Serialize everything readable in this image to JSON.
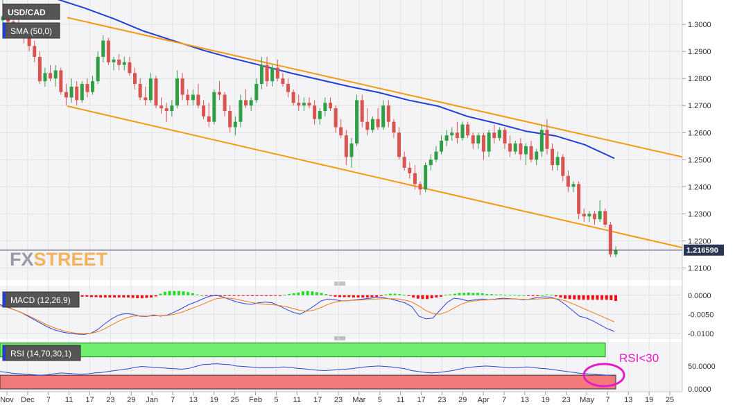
{
  "chart_data": {
    "type": "candlestick",
    "symbol": "USD/CAD",
    "indicator_label": "SMA (50,0)",
    "last_price_label": "1.216590",
    "watermark": {
      "part1": "FX",
      "part2": "STREET"
    },
    "colors": {
      "up": "#2f9e44",
      "down": "#d9534f",
      "sma": "#1f3fd6",
      "channel": "#f59a12",
      "macd_line": "#2b45d6",
      "signal_line": "#f07a1a",
      "rsi_band_top": "#6ef06e",
      "rsi_band_bottom": "#f37a7a",
      "annotation": "#e51bc9"
    },
    "price_axis": {
      "ylim": [
        1.2055,
        1.309
      ],
      "ticks": [
        "1.3000",
        "1.2900",
        "1.2800",
        "1.2700",
        "1.2600",
        "1.2500",
        "1.2400",
        "1.2300",
        "1.2200",
        "1.2100"
      ]
    },
    "x_ticks": [
      "Nov",
      "Dec",
      "7",
      "11",
      "17",
      "23",
      "29",
      "Jan",
      "7",
      "13",
      "19",
      "25",
      "Feb",
      "5",
      "11",
      "17",
      "23",
      "Mar",
      "5",
      "11",
      "17",
      "23",
      "29",
      "Apr",
      "7",
      "13",
      "19",
      "23",
      "May",
      "7",
      "13",
      "19",
      "25"
    ],
    "candles": [
      [
        1.3015,
        1.309,
        1.2995,
        1.303
      ],
      [
        1.303,
        1.305,
        1.3,
        1.301
      ],
      [
        1.301,
        1.304,
        1.299,
        1.2995
      ],
      [
        1.2995,
        1.302,
        1.296,
        1.298
      ],
      [
        1.298,
        1.3,
        1.293,
        1.295
      ],
      [
        1.295,
        1.298,
        1.29,
        1.292
      ],
      [
        1.292,
        1.294,
        1.286,
        1.288
      ],
      [
        1.288,
        1.29,
        1.278,
        1.279
      ],
      [
        1.279,
        1.284,
        1.277,
        1.282
      ],
      [
        1.282,
        1.285,
        1.279,
        1.28
      ],
      [
        1.28,
        1.285,
        1.277,
        1.283
      ],
      [
        1.283,
        1.284,
        1.274,
        1.275
      ],
      [
        1.275,
        1.278,
        1.27,
        1.273
      ],
      [
        1.273,
        1.28,
        1.271,
        1.277
      ],
      [
        1.277,
        1.279,
        1.27,
        1.272
      ],
      [
        1.272,
        1.279,
        1.271,
        1.278
      ],
      [
        1.278,
        1.28,
        1.273,
        1.275
      ],
      [
        1.275,
        1.281,
        1.274,
        1.279
      ],
      [
        1.279,
        1.29,
        1.278,
        1.288
      ],
      [
        1.288,
        1.296,
        1.286,
        1.294
      ],
      [
        1.294,
        1.295,
        1.285,
        1.286
      ],
      [
        1.286,
        1.288,
        1.283,
        1.287
      ],
      [
        1.287,
        1.289,
        1.283,
        1.285
      ],
      [
        1.285,
        1.288,
        1.283,
        1.286
      ],
      [
        1.286,
        1.288,
        1.281,
        1.282
      ],
      [
        1.282,
        1.284,
        1.276,
        1.278
      ],
      [
        1.278,
        1.28,
        1.272,
        1.273
      ],
      [
        1.273,
        1.277,
        1.27,
        1.272
      ],
      [
        1.272,
        1.282,
        1.271,
        1.28
      ],
      [
        1.28,
        1.281,
        1.269,
        1.27
      ],
      [
        1.27,
        1.273,
        1.267,
        1.269
      ],
      [
        1.269,
        1.271,
        1.264,
        1.268
      ],
      [
        1.268,
        1.272,
        1.266,
        1.27
      ],
      [
        1.27,
        1.283,
        1.269,
        1.28
      ],
      [
        1.28,
        1.282,
        1.272,
        1.274
      ],
      [
        1.274,
        1.276,
        1.27,
        1.272
      ],
      [
        1.272,
        1.276,
        1.27,
        1.274
      ],
      [
        1.274,
        1.278,
        1.269,
        1.27
      ],
      [
        1.27,
        1.272,
        1.265,
        1.266
      ],
      [
        1.266,
        1.271,
        1.262,
        1.264
      ],
      [
        1.264,
        1.276,
        1.263,
        1.275
      ],
      [
        1.275,
        1.279,
        1.272,
        1.274
      ],
      [
        1.274,
        1.275,
        1.266,
        1.268
      ],
      [
        1.268,
        1.27,
        1.26,
        1.262
      ],
      [
        1.262,
        1.266,
        1.259,
        1.264
      ],
      [
        1.264,
        1.274,
        1.262,
        1.272
      ],
      [
        1.272,
        1.276,
        1.269,
        1.27
      ],
      [
        1.27,
        1.273,
        1.268,
        1.272
      ],
      [
        1.272,
        1.28,
        1.271,
        1.278
      ],
      [
        1.278,
        1.288,
        1.276,
        1.285
      ],
      [
        1.285,
        1.288,
        1.277,
        1.279
      ],
      [
        1.279,
        1.285,
        1.277,
        1.284
      ],
      [
        1.284,
        1.287,
        1.279,
        1.28
      ],
      [
        1.28,
        1.282,
        1.277,
        1.278
      ],
      [
        1.278,
        1.28,
        1.273,
        1.275
      ],
      [
        1.275,
        1.276,
        1.27,
        1.271
      ],
      [
        1.271,
        1.274,
        1.268,
        1.27
      ],
      [
        1.27,
        1.273,
        1.268,
        1.271
      ],
      [
        1.271,
        1.273,
        1.269,
        1.27
      ],
      [
        1.27,
        1.272,
        1.263,
        1.265
      ],
      [
        1.265,
        1.269,
        1.263,
        1.268
      ],
      [
        1.268,
        1.273,
        1.266,
        1.271
      ],
      [
        1.271,
        1.273,
        1.268,
        1.269
      ],
      [
        1.269,
        1.27,
        1.26,
        1.262
      ],
      [
        1.262,
        1.265,
        1.258,
        1.259
      ],
      [
        1.259,
        1.261,
        1.248,
        1.251
      ],
      [
        1.251,
        1.258,
        1.247,
        1.256
      ],
      [
        1.256,
        1.274,
        1.255,
        1.272
      ],
      [
        1.272,
        1.274,
        1.262,
        1.264
      ],
      [
        1.264,
        1.269,
        1.259,
        1.261
      ],
      [
        1.261,
        1.266,
        1.26,
        1.265
      ],
      [
        1.265,
        1.269,
        1.261,
        1.262
      ],
      [
        1.262,
        1.272,
        1.261,
        1.27
      ],
      [
        1.27,
        1.272,
        1.262,
        1.264
      ],
      [
        1.264,
        1.265,
        1.258,
        1.26
      ],
      [
        1.26,
        1.262,
        1.25,
        1.251
      ],
      [
        1.251,
        1.253,
        1.246,
        1.247
      ],
      [
        1.247,
        1.249,
        1.243,
        1.245
      ],
      [
        1.245,
        1.248,
        1.239,
        1.241
      ],
      [
        1.241,
        1.242,
        1.237,
        1.239
      ],
      [
        1.239,
        1.249,
        1.238,
        1.248
      ],
      [
        1.248,
        1.252,
        1.246,
        1.25
      ],
      [
        1.25,
        1.255,
        1.249,
        1.253
      ],
      [
        1.253,
        1.259,
        1.252,
        1.257
      ],
      [
        1.257,
        1.261,
        1.255,
        1.259
      ],
      [
        1.259,
        1.262,
        1.257,
        1.26
      ],
      [
        1.26,
        1.264,
        1.256,
        1.258
      ],
      [
        1.258,
        1.264,
        1.257,
        1.263
      ],
      [
        1.263,
        1.264,
        1.258,
        1.259
      ],
      [
        1.259,
        1.26,
        1.254,
        1.256
      ],
      [
        1.256,
        1.26,
        1.254,
        1.259
      ],
      [
        1.259,
        1.26,
        1.25,
        1.253
      ],
      [
        1.253,
        1.261,
        1.251,
        1.26
      ],
      [
        1.26,
        1.263,
        1.256,
        1.258
      ],
      [
        1.258,
        1.262,
        1.257,
        1.261
      ],
      [
        1.261,
        1.262,
        1.254,
        1.256
      ],
      [
        1.256,
        1.259,
        1.251,
        1.253
      ],
      [
        1.253,
        1.257,
        1.252,
        1.256
      ],
      [
        1.256,
        1.258,
        1.25,
        1.252
      ],
      [
        1.252,
        1.256,
        1.248,
        1.255
      ],
      [
        1.255,
        1.257,
        1.249,
        1.25
      ],
      [
        1.25,
        1.254,
        1.248,
        1.253
      ],
      [
        1.253,
        1.263,
        1.251,
        1.261
      ],
      [
        1.261,
        1.265,
        1.252,
        1.254
      ],
      [
        1.254,
        1.256,
        1.246,
        1.248
      ],
      [
        1.248,
        1.253,
        1.246,
        1.251
      ],
      [
        1.251,
        1.252,
        1.242,
        1.244
      ],
      [
        1.244,
        1.246,
        1.238,
        1.24
      ],
      [
        1.24,
        1.242,
        1.238,
        1.241
      ],
      [
        1.241,
        1.242,
        1.228,
        1.23
      ],
      [
        1.23,
        1.232,
        1.227,
        1.229
      ],
      [
        1.229,
        1.231,
        1.227,
        1.23
      ],
      [
        1.23,
        1.231,
        1.226,
        1.228
      ],
      [
        1.228,
        1.235,
        1.227,
        1.231
      ],
      [
        1.231,
        1.232,
        1.225,
        1.226
      ],
      [
        1.226,
        1.227,
        1.214,
        1.215
      ],
      [
        1.215,
        1.218,
        1.214,
        1.2166
      ]
    ],
    "sma": [
      1.3095,
      1.306,
      1.302,
      1.2975,
      1.294,
      1.2905,
      1.2875,
      1.2848,
      1.282,
      1.2795,
      1.277,
      1.2748,
      1.272,
      1.2698,
      1.266,
      1.2634,
      1.2605,
      1.2588,
      1.2555,
      1.2505
    ],
    "channel_upper": {
      "start": [
        1.3025,
        1.304
      ],
      "end": [
        1.251,
        1.2535
      ]
    },
    "channel_lower": {
      "start": [
        1.2698,
        1.2705
      ],
      "end": [
        1.2175,
        1.217
      ]
    },
    "macd": {
      "label": "MACD (12,26,9)",
      "ylim": [
        -0.0115,
        0.0025
      ],
      "ticks": [
        "0.0000",
        "-0.0050",
        "-0.0100"
      ],
      "hist": [
        -0.0004,
        -0.0004,
        -0.0004,
        -0.0005,
        -0.0005,
        -0.0006,
        -0.0006,
        -0.0006,
        -0.0006,
        -0.0006,
        -0.0006,
        -0.0006,
        -0.0007,
        -0.0008,
        -0.0008,
        -0.0007,
        -0.0006,
        -0.0003,
        0.0004,
        0.0009,
        0.0011,
        0.0011,
        0.0011,
        0.001,
        0.0008,
        0.0005,
        0.0002,
        0.0,
        -0.0001,
        -0.0002,
        -0.0002,
        -0.0002,
        -0.0002,
        -0.0001,
        -0.0001,
        -0.0001,
        -0.0001,
        -0.0001,
        -0.0002,
        -0.0002,
        -0.0002,
        -0.0002,
        -0.0002,
        -0.0001,
        -0.0001,
        0.0001,
        0.0003,
        0.0005,
        0.0007,
        0.001,
        0.0011,
        0.001,
        0.0008,
        0.0006,
        0.0003,
        -0.0001,
        -0.0004,
        -0.0005,
        -0.0005,
        -0.0005,
        -0.0006,
        -0.0006,
        -0.0006,
        -0.0006,
        -0.0005,
        -0.0004,
        -0.0002,
        0.0002,
        0.0004,
        0.0004,
        0.0003,
        0.0001,
        -0.0002,
        -0.0006,
        -0.0009,
        -0.001,
        -0.001,
        -0.0008,
        -0.0006,
        -0.0004,
        0.0001,
        0.0002,
        0.0004,
        0.0006,
        0.0006,
        0.0007,
        0.0006,
        0.0006,
        0.0005,
        0.0003,
        0.0003,
        0.0002,
        0.0002,
        0.0001,
        0.0001,
        0.0001,
        0.0,
        0.0,
        -0.0001,
        -0.0002,
        -0.0002,
        0.0,
        0.0002,
        0.0001,
        -0.0003,
        -0.0006,
        -0.0009,
        -0.001,
        -0.0011,
        -0.0012,
        -0.0012,
        -0.0012,
        -0.0012,
        -0.0012,
        -0.0012,
        -0.0012,
        -0.0013,
        -0.0015
      ],
      "line": [
        -0.0025,
        -0.003,
        -0.0038,
        -0.0045,
        -0.0055,
        -0.0065,
        -0.0075,
        -0.0085,
        -0.0092,
        -0.0097,
        -0.01,
        -0.0102,
        -0.0103,
        -0.01,
        -0.009,
        -0.0075,
        -0.0062,
        -0.0052,
        -0.0048,
        -0.005,
        -0.0055,
        -0.0056,
        -0.0052,
        -0.0055,
        -0.0052,
        -0.0044,
        -0.0035,
        -0.0025,
        -0.0018,
        -0.001,
        -0.0003,
        0.0,
        -0.0005,
        -0.0012,
        -0.0018,
        -0.0022,
        -0.0024,
        -0.002,
        -0.0018,
        -0.002,
        -0.0028,
        -0.0037,
        -0.0045,
        -0.005,
        -0.004,
        -0.0028,
        -0.0015,
        -0.001,
        -0.0012,
        -0.0015,
        -0.0014,
        -0.0012,
        -0.001,
        -0.0008,
        -0.0006,
        -0.0007,
        -0.001,
        -0.0015,
        -0.002,
        -0.003,
        -0.0055,
        -0.0062,
        -0.006,
        -0.004,
        -0.002,
        -0.0008,
        -0.001,
        -0.0015,
        -0.0012,
        -0.001,
        -0.0012,
        -0.001,
        -0.0008,
        -0.0009,
        -0.001,
        -0.0012,
        -0.001,
        -0.0006,
        -0.0004,
        -0.0006,
        -0.0012,
        -0.0025,
        -0.004,
        -0.0055,
        -0.006,
        -0.0068,
        -0.0078,
        -0.0088,
        -0.0095
      ],
      "signal": [
        -0.0028,
        -0.0032,
        -0.0038,
        -0.0045,
        -0.0053,
        -0.0062,
        -0.0071,
        -0.008,
        -0.0087,
        -0.0093,
        -0.0097,
        -0.01,
        -0.0101,
        -0.01,
        -0.0096,
        -0.0088,
        -0.0078,
        -0.0068,
        -0.006,
        -0.0055,
        -0.0054,
        -0.0055,
        -0.0054,
        -0.0054,
        -0.0053,
        -0.005,
        -0.0045,
        -0.0038,
        -0.0031,
        -0.0024,
        -0.0016,
        -0.0009,
        -0.0007,
        -0.0008,
        -0.0011,
        -0.0015,
        -0.0019,
        -0.0022,
        -0.0024,
        -0.0025,
        -0.0027,
        -0.003,
        -0.0035,
        -0.004,
        -0.0042,
        -0.0039,
        -0.0032,
        -0.0024,
        -0.0018,
        -0.0015,
        -0.0014,
        -0.0013,
        -0.0012,
        -0.0011,
        -0.001,
        -0.0009,
        -0.0009,
        -0.001,
        -0.0013,
        -0.0018,
        -0.0028,
        -0.004,
        -0.0048,
        -0.005,
        -0.0044,
        -0.0034,
        -0.0024,
        -0.0018,
        -0.0015,
        -0.0013,
        -0.0012,
        -0.0011,
        -0.001,
        -0.001,
        -0.001,
        -0.0011,
        -0.0011,
        -0.001,
        -0.0009,
        -0.0008,
        -0.001,
        -0.0015,
        -0.0022,
        -0.003,
        -0.0038,
        -0.0046,
        -0.0054,
        -0.0062,
        -0.007
      ]
    },
    "rsi": {
      "label": "RSI (14,70,30,1)",
      "ylim": [
        0,
        100
      ],
      "ticks": [
        "50.0000",
        "0.0000"
      ],
      "annotation": "RSI<30",
      "values": [
        38,
        36,
        34,
        33,
        32,
        31,
        30,
        31,
        33,
        35,
        34,
        33,
        32,
        33,
        35,
        36,
        38,
        40,
        42,
        44,
        47,
        49,
        48,
        47,
        46,
        45,
        44,
        43,
        45,
        49,
        53,
        54,
        55,
        54,
        53,
        50,
        49,
        48,
        47,
        46,
        46,
        47,
        48,
        47,
        45,
        44,
        42,
        41,
        40,
        41,
        42,
        43,
        44,
        46,
        48,
        49,
        50,
        49,
        48,
        46,
        44,
        40,
        38,
        36,
        35,
        36,
        38,
        40,
        43,
        46,
        48,
        49,
        50,
        49,
        48,
        47,
        46,
        47,
        48,
        47,
        45,
        44,
        42,
        40,
        38,
        36,
        34,
        33,
        32,
        31,
        30,
        29
      ]
    }
  }
}
